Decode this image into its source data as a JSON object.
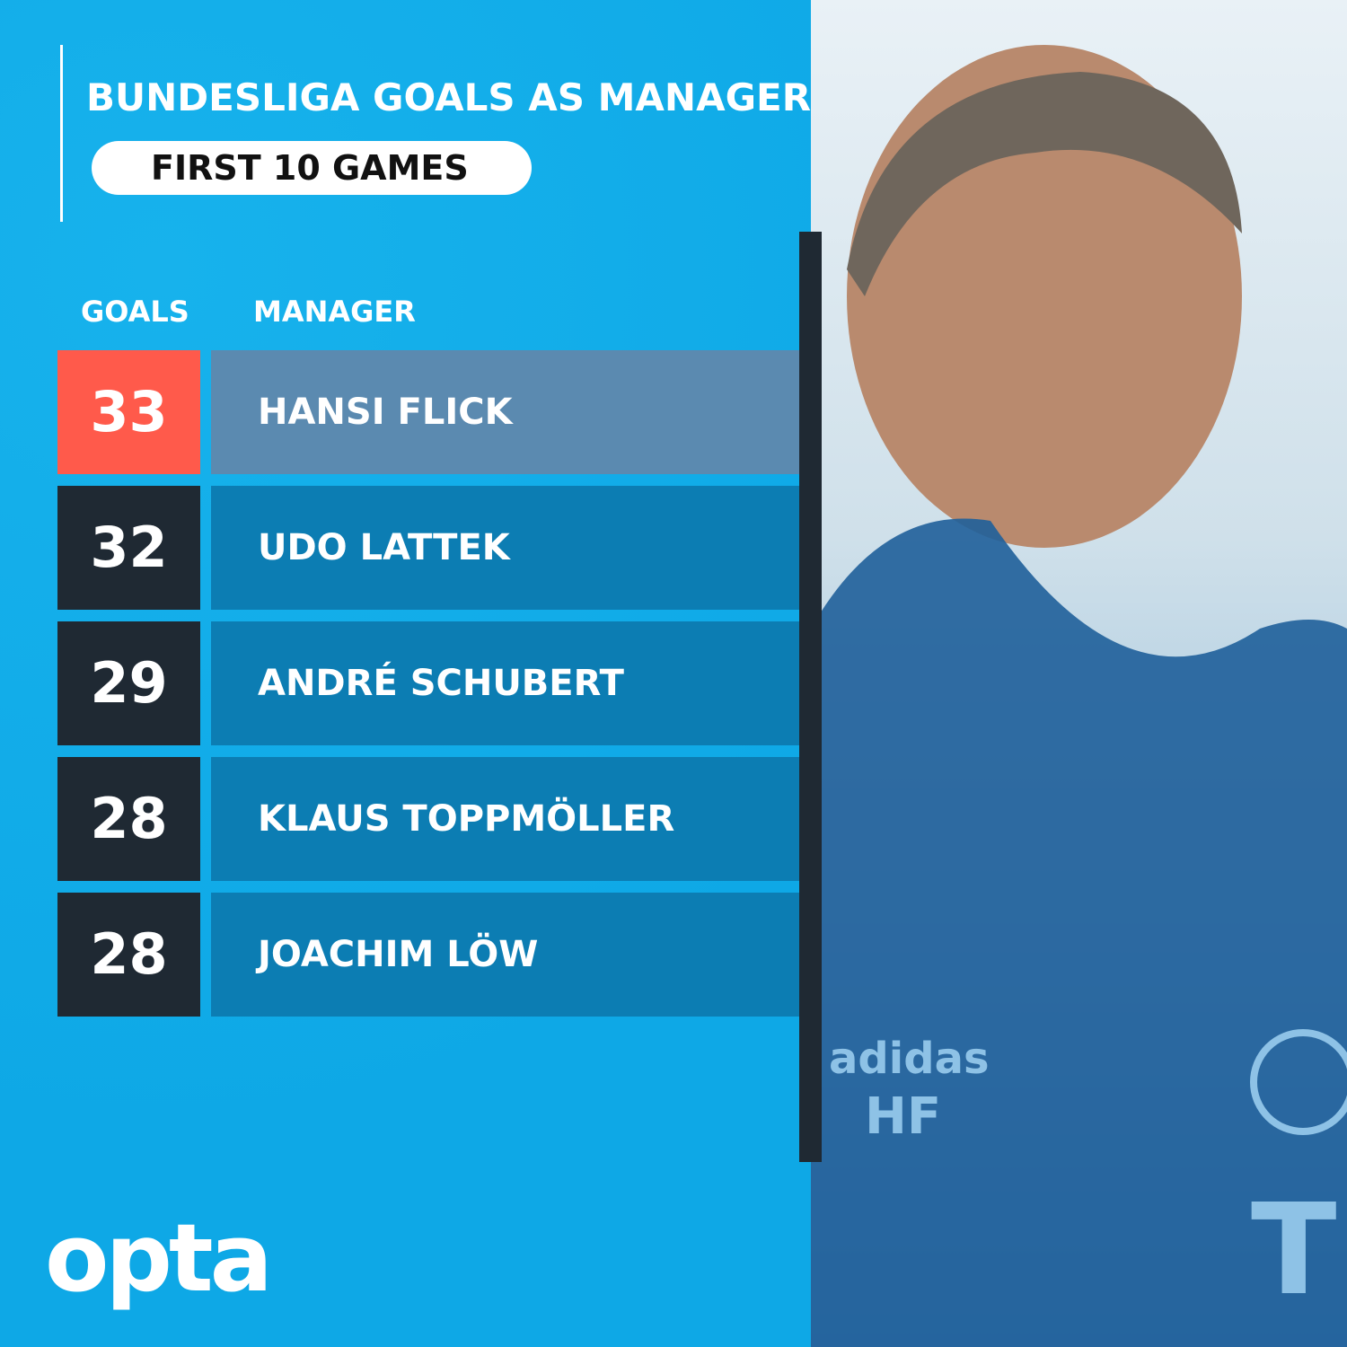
{
  "chart_data": {
    "type": "table",
    "title": "BUNDESLIGA GOALS AS MANAGER",
    "subtitle": "FIRST 10 GAMES",
    "columns": [
      "GOALS",
      "MANAGER"
    ],
    "rows": [
      {
        "goals": "33",
        "manager": "HANSI FLICK",
        "highlight": true
      },
      {
        "goals": "32",
        "manager": "UDO LATTEK",
        "highlight": false
      },
      {
        "goals": "29",
        "manager": "ANDRÉ SCHUBERT",
        "highlight": false
      },
      {
        "goals": "28",
        "manager": "KLAUS TOPPMÖLLER",
        "highlight": false
      },
      {
        "goals": "28",
        "manager": "JOACHIM LÖW",
        "highlight": false
      }
    ]
  },
  "colors": {
    "background": "#12aeea",
    "highlight_num": "#ff5a4b",
    "highlight_name": "#5b8ab0",
    "num": "#1f2933",
    "name": "#0c7db3"
  },
  "brand": {
    "logo": "opta"
  },
  "photo": {
    "jacket_text": "HF",
    "jacket_brand": "adidas"
  }
}
